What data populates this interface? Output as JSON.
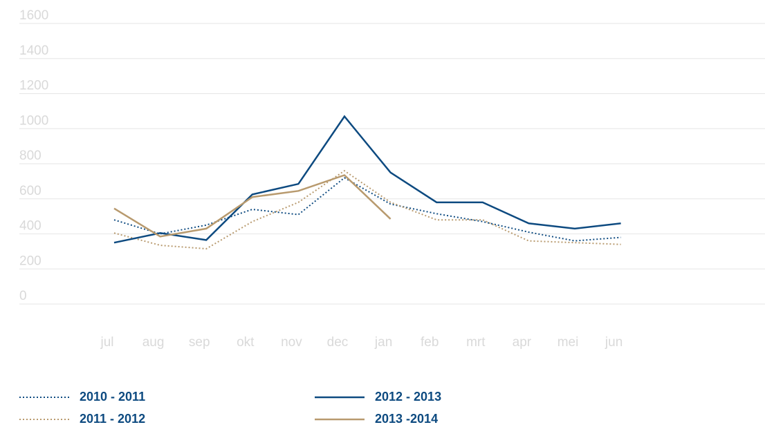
{
  "chart_data": {
    "type": "line",
    "categories": [
      "jul",
      "aug",
      "sep",
      "okt",
      "nov",
      "dec",
      "jan",
      "feb",
      "mrt",
      "apr",
      "mei",
      "jun"
    ],
    "series": [
      {
        "name": "2010 - 2011",
        "color": "#0d4a80",
        "style": "dotted",
        "values": [
          480,
          400,
          450,
          540,
          510,
          720,
          570,
          515,
          470,
          410,
          360,
          380
        ]
      },
      {
        "name": "2011 - 2012",
        "color": "#b89a6e",
        "style": "dotted",
        "values": [
          405,
          335,
          315,
          470,
          580,
          760,
          580,
          480,
          480,
          360,
          350,
          340
        ]
      },
      {
        "name": "2012 - 2013",
        "color": "#0d4a80",
        "style": "solid",
        "values": [
          350,
          405,
          365,
          625,
          685,
          1070,
          750,
          580,
          580,
          460,
          430,
          460
        ]
      },
      {
        "name": "2013 -2014",
        "color": "#b89a6e",
        "style": "solid",
        "values": [
          545,
          385,
          430,
          610,
          645,
          735,
          485,
          null,
          null,
          null,
          null,
          null
        ]
      }
    ],
    "ylim": [
      0,
      1600
    ],
    "yticks": [
      0,
      200,
      400,
      600,
      800,
      1000,
      1200,
      1400,
      1600
    ],
    "grid": true
  }
}
